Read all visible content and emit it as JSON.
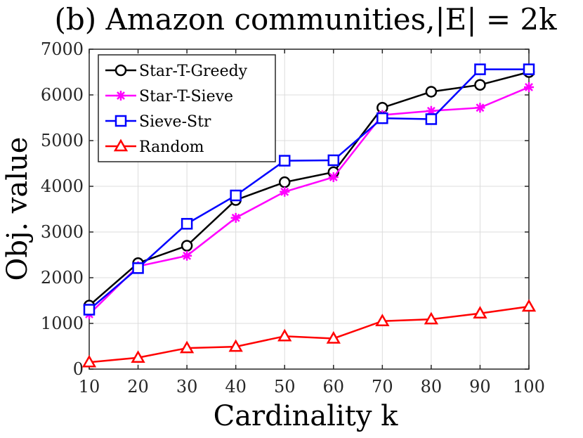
{
  "chart_data": {
    "type": "line",
    "title": "(b) Amazon communities,|E| = 2k",
    "xlabel": "Cardinality k",
    "ylabel": "Obj. value",
    "x": [
      10,
      20,
      30,
      40,
      50,
      60,
      70,
      80,
      90,
      100
    ],
    "xlim": [
      10,
      100
    ],
    "ylim": [
      0,
      7000
    ],
    "xticks": [
      "10",
      "20",
      "30",
      "40",
      "50",
      "60",
      "70",
      "80",
      "90",
      "100"
    ],
    "yticks": [
      "0",
      "1000",
      "2000",
      "3000",
      "4000",
      "5000",
      "6000",
      "7000"
    ],
    "grid": true,
    "legend_position": "top-left",
    "series": [
      {
        "name": "Star-T-Greedy",
        "color": "#000000",
        "marker": "circle",
        "values": [
          1390,
          2320,
          2700,
          3700,
          4090,
          4310,
          5720,
          6070,
          6220,
          6500
        ]
      },
      {
        "name": "Star-T-Sieve",
        "color": "#ff00ff",
        "marker": "asterisk",
        "values": [
          1200,
          2250,
          2480,
          3310,
          3880,
          4200,
          5560,
          5650,
          5720,
          6170
        ]
      },
      {
        "name": "Sieve-Str",
        "color": "#0000ff",
        "marker": "square",
        "values": [
          1300,
          2210,
          3180,
          3800,
          4560,
          4570,
          5490,
          5470,
          6560,
          6560
        ]
      },
      {
        "name": "Random",
        "color": "#ff0000",
        "marker": "triangle",
        "values": [
          150,
          250,
          460,
          490,
          720,
          670,
          1050,
          1090,
          1220,
          1370
        ]
      }
    ]
  }
}
